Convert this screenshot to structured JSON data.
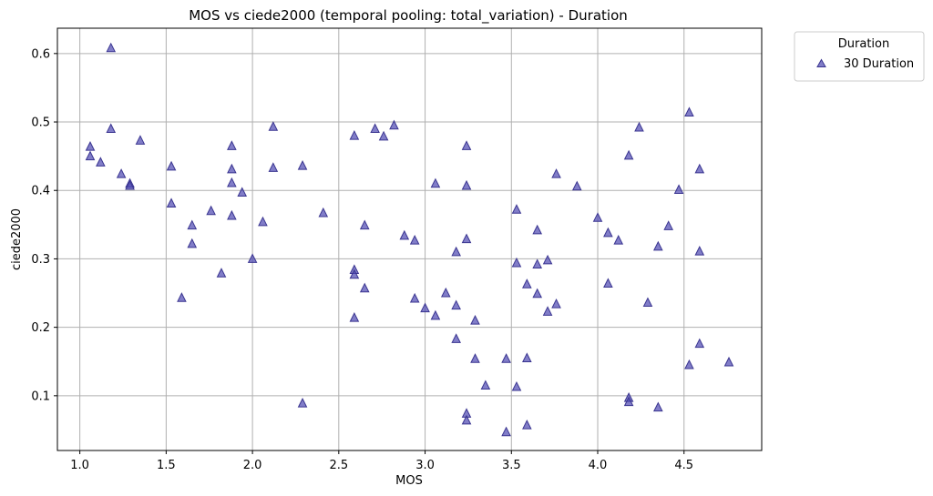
{
  "chart_data": {
    "type": "scatter",
    "title": "MOS vs ciede2000 (temporal pooling: total_variation) - Duration",
    "xlabel": "MOS",
    "ylabel": "ciede2000",
    "xlim": [
      0.87,
      4.95
    ],
    "ylim": [
      0.02,
      0.637
    ],
    "xticks": [
      "1.0",
      "1.5",
      "2.0",
      "2.5",
      "3.0",
      "3.5",
      "4.0",
      "4.5"
    ],
    "yticks": [
      "0.1",
      "0.2",
      "0.3",
      "0.4",
      "0.5",
      "0.6"
    ],
    "grid": true,
    "marker": "triangle",
    "marker_color": "#4b46b0",
    "legend": {
      "title": "Duration",
      "placement": "outside-top-right",
      "entries": [
        "30 Duration"
      ]
    },
    "series": [
      {
        "name": "30 Duration",
        "points": [
          [
            1.06,
            0.464
          ],
          [
            1.06,
            0.45
          ],
          [
            1.12,
            0.441
          ],
          [
            1.18,
            0.608
          ],
          [
            1.18,
            0.49
          ],
          [
            1.24,
            0.424
          ],
          [
            1.29,
            0.41
          ],
          [
            1.29,
            0.407
          ],
          [
            1.35,
            0.473
          ],
          [
            1.53,
            0.435
          ],
          [
            1.53,
            0.381
          ],
          [
            1.59,
            0.243
          ],
          [
            1.65,
            0.349
          ],
          [
            1.65,
            0.322
          ],
          [
            1.76,
            0.37
          ],
          [
            1.82,
            0.279
          ],
          [
            1.88,
            0.465
          ],
          [
            1.88,
            0.431
          ],
          [
            1.88,
            0.411
          ],
          [
            1.88,
            0.363
          ],
          [
            1.94,
            0.397
          ],
          [
            2.0,
            0.3
          ],
          [
            2.06,
            0.354
          ],
          [
            2.12,
            0.493
          ],
          [
            2.12,
            0.433
          ],
          [
            2.29,
            0.436
          ],
          [
            2.29,
            0.089
          ],
          [
            2.41,
            0.367
          ],
          [
            2.59,
            0.48
          ],
          [
            2.59,
            0.284
          ],
          [
            2.59,
            0.277
          ],
          [
            2.59,
            0.214
          ],
          [
            2.65,
            0.349
          ],
          [
            2.65,
            0.257
          ],
          [
            2.71,
            0.49
          ],
          [
            2.76,
            0.479
          ],
          [
            2.82,
            0.495
          ],
          [
            2.88,
            0.334
          ],
          [
            2.94,
            0.327
          ],
          [
            2.94,
            0.242
          ],
          [
            3.0,
            0.228
          ],
          [
            3.06,
            0.41
          ],
          [
            3.06,
            0.217
          ],
          [
            3.12,
            0.25
          ],
          [
            3.18,
            0.31
          ],
          [
            3.18,
            0.232
          ],
          [
            3.18,
            0.183
          ],
          [
            3.24,
            0.465
          ],
          [
            3.24,
            0.407
          ],
          [
            3.24,
            0.329
          ],
          [
            3.24,
            0.074
          ],
          [
            3.24,
            0.064
          ],
          [
            3.29,
            0.21
          ],
          [
            3.29,
            0.154
          ],
          [
            3.35,
            0.115
          ],
          [
            3.47,
            0.154
          ],
          [
            3.47,
            0.047
          ],
          [
            3.53,
            0.372
          ],
          [
            3.53,
            0.294
          ],
          [
            3.53,
            0.113
          ],
          [
            3.59,
            0.263
          ],
          [
            3.59,
            0.155
          ],
          [
            3.59,
            0.057
          ],
          [
            3.65,
            0.342
          ],
          [
            3.65,
            0.292
          ],
          [
            3.65,
            0.249
          ],
          [
            3.71,
            0.298
          ],
          [
            3.71,
            0.223
          ],
          [
            3.76,
            0.424
          ],
          [
            3.76,
            0.234
          ],
          [
            3.88,
            0.406
          ],
          [
            4.0,
            0.36
          ],
          [
            4.06,
            0.338
          ],
          [
            4.06,
            0.264
          ],
          [
            4.12,
            0.327
          ],
          [
            4.18,
            0.451
          ],
          [
            4.18,
            0.097
          ],
          [
            4.18,
            0.091
          ],
          [
            4.24,
            0.492
          ],
          [
            4.29,
            0.236
          ],
          [
            4.35,
            0.318
          ],
          [
            4.35,
            0.083
          ],
          [
            4.41,
            0.348
          ],
          [
            4.47,
            0.401
          ],
          [
            4.53,
            0.514
          ],
          [
            4.53,
            0.145
          ],
          [
            4.59,
            0.431
          ],
          [
            4.59,
            0.311
          ],
          [
            4.59,
            0.176
          ],
          [
            4.76,
            0.149
          ]
        ]
      }
    ]
  }
}
